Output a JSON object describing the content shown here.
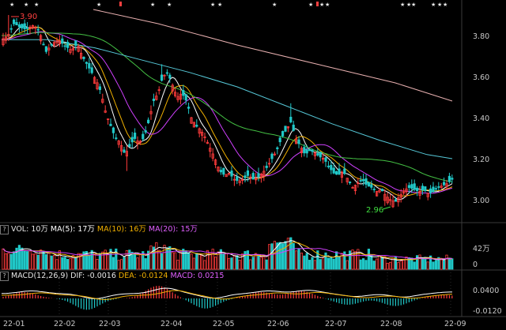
{
  "colors": {
    "background": "#000000",
    "up": "#ff3b3b",
    "down": "#20c8c8",
    "ma5": "#ffffff",
    "ma10": "#f0b000",
    "ma20": "#d040ff",
    "ma60": "#44c044",
    "ma120": "#56c8d8",
    "ma250": "#e8b0b0",
    "axis_text": "#c8c8c8",
    "annotation_red": "#ff4040",
    "annotation_green": "#40e040"
  },
  "price_axis": {
    "labels": [
      "3.80",
      "3.60",
      "3.40",
      "3.20",
      "3.00"
    ]
  },
  "annotations": {
    "high_label": "3.90",
    "low_label": "2.96"
  },
  "event_markers": "★",
  "volume_header": {
    "vol": "VOL: 10万",
    "ma5": "MA(5): 17万",
    "ma10": "MA(10): 16万",
    "ma20": "MA(20): 15万"
  },
  "volume_axis": {
    "labels": [
      "42万",
      "0"
    ]
  },
  "macd_header": {
    "name": "MACD(12,26,9)",
    "dif": "DIF: -0.0016",
    "dea": "DEA: -0.0124",
    "macd": "MACD: 0.0215"
  },
  "macd_axis": {
    "labels": [
      "0.0400",
      "-0.0120"
    ]
  },
  "date_axis": {
    "labels": [
      "22-01",
      "22-02",
      "22-03",
      "22-04",
      "22-05",
      "22-06",
      "22-07",
      "22-08",
      "22-09"
    ]
  },
  "chart_data": {
    "type": "candlestick",
    "x_range": [
      "22-01",
      "22-09"
    ],
    "ylim": [
      2.93,
      3.98
    ],
    "series": [
      {
        "name": "MA(5)"
      },
      {
        "name": "MA(10)"
      },
      {
        "name": "MA(20)"
      }
    ],
    "key_points": [
      {
        "label": "3.90",
        "x": "22-01",
        "y": 3.9
      },
      {
        "label": "2.96",
        "x": "22-08",
        "y": 2.96
      }
    ],
    "volume_ylim": [
      0,
      420000
    ],
    "macd_ylim": [
      -0.012,
      0.04
    ]
  }
}
